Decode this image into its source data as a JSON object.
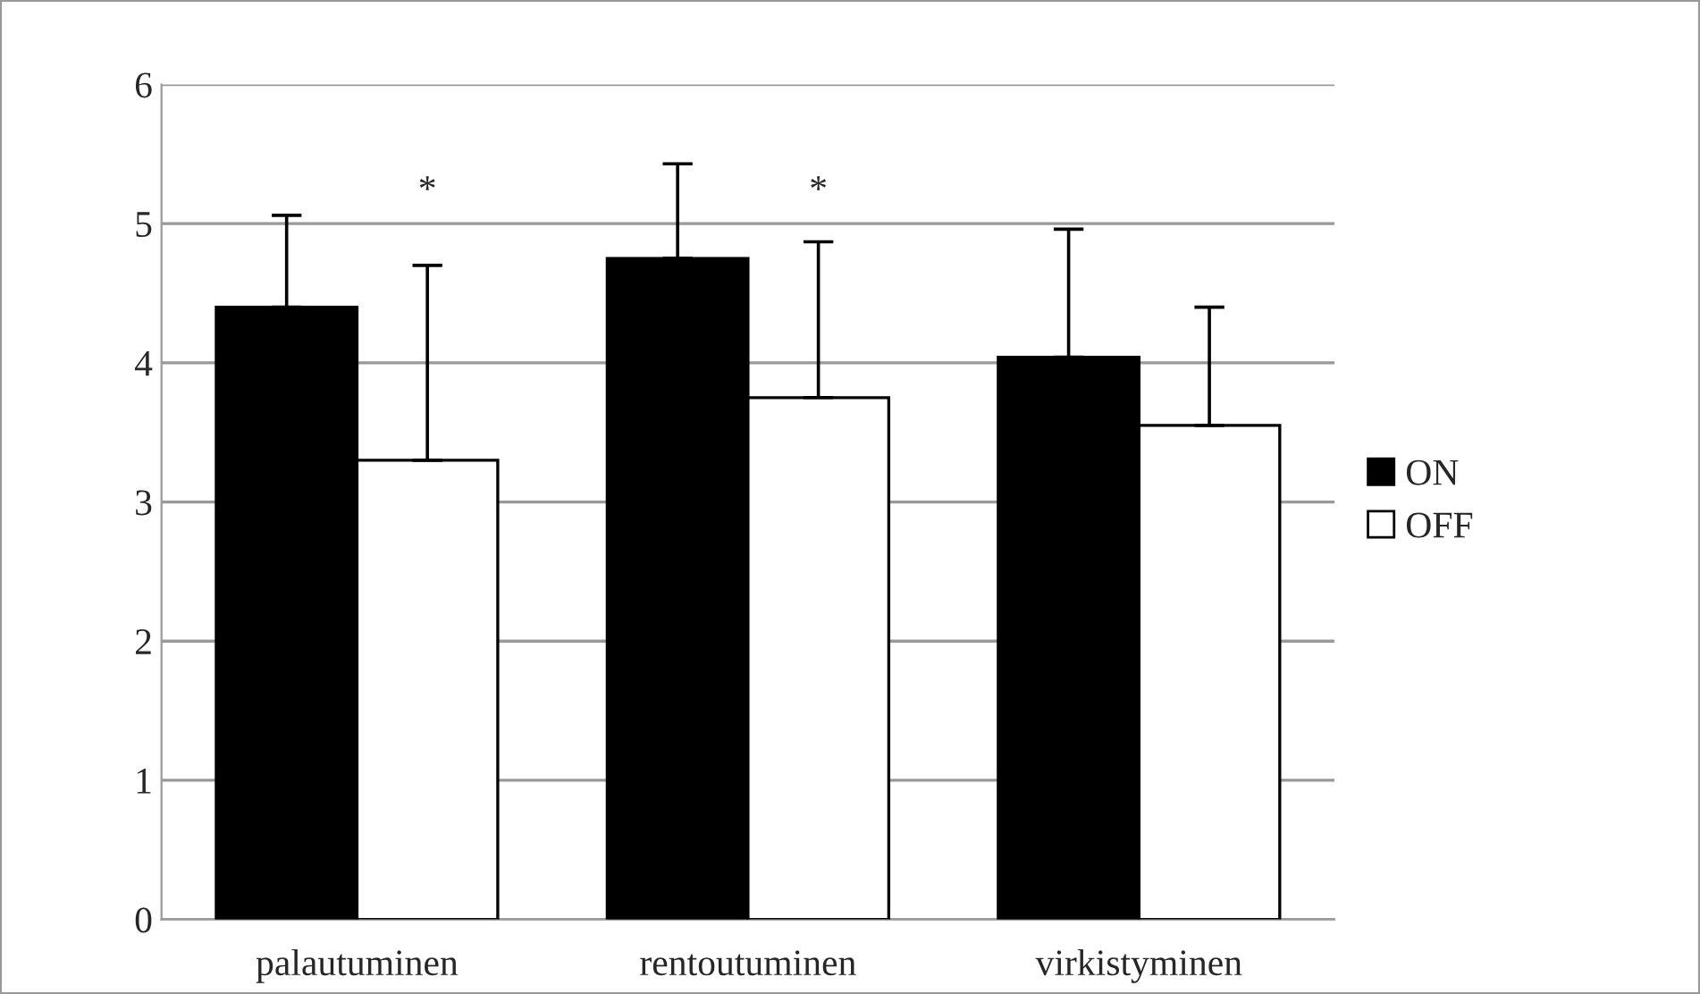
{
  "chart_data": {
    "type": "bar",
    "categories": [
      "palautuminen",
      "rentoutuminen",
      "virkistyminen"
    ],
    "series": [
      {
        "name": "ON",
        "color": "#000000",
        "values": [
          4.4,
          4.75,
          4.04
        ],
        "errors": [
          [
            4.4,
            5.06
          ],
          [
            4.75,
            5.43
          ],
          [
            4.04,
            4.96
          ]
        ]
      },
      {
        "name": "OFF",
        "color": "#ffffff",
        "values": [
          3.3,
          3.75,
          3.55
        ],
        "errors": [
          [
            3.3,
            4.7
          ],
          [
            3.75,
            4.87
          ],
          [
            3.55,
            4.4
          ]
        ]
      }
    ],
    "annotations": [
      "*",
      "*"
    ],
    "ylim": [
      0,
      6
    ],
    "yticks": [
      0,
      1,
      2,
      3,
      4,
      5,
      6
    ],
    "grid": "y",
    "legend": "right"
  }
}
